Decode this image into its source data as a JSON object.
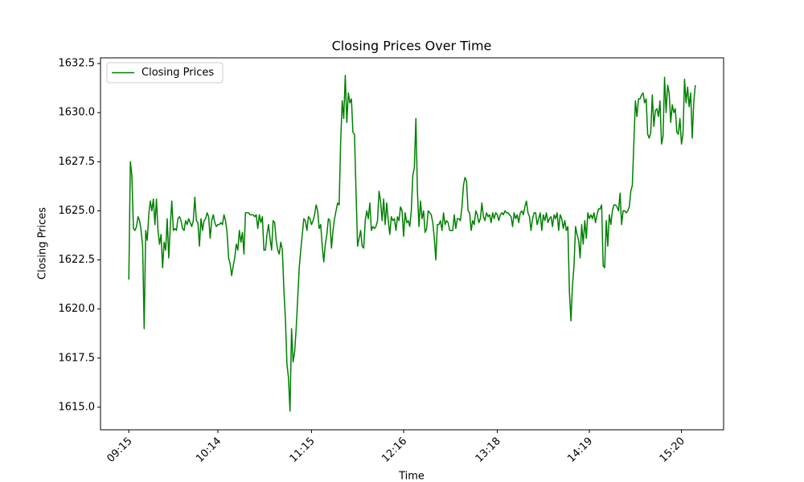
{
  "chart_data": {
    "type": "line",
    "title": "Closing Prices Over Time",
    "xlabel": "Time",
    "ylabel": "Closing Prices",
    "xlim": [
      -18.45,
      387.45
    ],
    "xticks": [
      {
        "value": 0,
        "label": "09:15"
      },
      {
        "value": 58,
        "label": "10:14"
      },
      {
        "value": 119,
        "label": "11:15"
      },
      {
        "value": 179,
        "label": "12:16"
      },
      {
        "value": 240,
        "label": "13:18"
      },
      {
        "value": 300,
        "label": "14:19"
      },
      {
        "value": 360,
        "label": "15:20"
      }
    ],
    "ylim": [
      1613.85,
      1632.79
    ],
    "yticks": [
      {
        "value": 1615,
        "label": "1615.0"
      },
      {
        "value": 1617.5,
        "label": "1617.5"
      },
      {
        "value": 1620,
        "label": "1620.0"
      },
      {
        "value": 1622.5,
        "label": "1622.5"
      },
      {
        "value": 1625,
        "label": "1625.0"
      },
      {
        "value": 1627.5,
        "label": "1627.5"
      },
      {
        "value": 1630,
        "label": "1630.0"
      },
      {
        "value": 1632.5,
        "label": "1632.5"
      }
    ],
    "grid": false,
    "legend": "upper left",
    "series": [
      {
        "name": "Closing Prices",
        "color": "#008000",
        "values": [
          1621.5,
          1627.5,
          1626.8,
          1624.1,
          1624.0,
          1624.2,
          1624.7,
          1624.5,
          1624.0,
          1623.2,
          1619.0,
          1624.0,
          1623.5,
          1624.8,
          1625.5,
          1625.0,
          1625.6,
          1624.3,
          1625.6,
          1624.0,
          1623.3,
          1623.8,
          1622.1,
          1623.4,
          1623.0,
          1624.6,
          1622.6,
          1624.2,
          1625.5,
          1624.0,
          1624.1,
          1624.0,
          1624.6,
          1624.7,
          1624.5,
          1624.1,
          1624.0,
          1624.5,
          1624.3,
          1624.6,
          1624.4,
          1624.2,
          1624.5,
          1625.7,
          1624.5,
          1624.4,
          1623.2,
          1624.6,
          1624.0,
          1624.5,
          1624.6,
          1624.9,
          1624.7,
          1623.6,
          1624.5,
          1624.8,
          1624.4,
          1624.2,
          1624.3,
          1624.3,
          1624.4,
          1624.3,
          1624.8,
          1624.5,
          1623.9,
          1622.6,
          1622.3,
          1621.7,
          1622.2,
          1622.6,
          1623.3,
          1623.0,
          1624.0,
          1623.4,
          1623.9,
          1622.8,
          1624.9,
          1624.9,
          1624.9,
          1624.8,
          1624.8,
          1624.8,
          1624.7,
          1624.8,
          1624.1,
          1624.8,
          1624.4,
          1624.7,
          1623.0,
          1623.0,
          1623.8,
          1624.3,
          1623.6,
          1623.0,
          1624.5,
          1624.4,
          1623.5,
          1623.0,
          1622.8,
          1623.4,
          1623.0,
          1621.0,
          1619.5,
          1617.2,
          1616.5,
          1614.8,
          1619.0,
          1617.3,
          1617.8,
          1619.0,
          1620.5,
          1622.1,
          1623.0,
          1623.8,
          1624.6,
          1624.5,
          1624.0,
          1624.7,
          1624.6,
          1624.3,
          1624.5,
          1624.8,
          1625.3,
          1625.0,
          1624.1,
          1624.3,
          1623.2,
          1622.4,
          1623.3,
          1623.8,
          1624.6,
          1624.5,
          1623.1,
          1624.0,
          1624.6,
          1625.0,
          1625.4,
          1625.3,
          1628.5,
          1630.6,
          1629.7,
          1631.9,
          1629.5,
          1631.0,
          1630.5,
          1630.7,
          1629.0,
          1628.9,
          1626.0,
          1623.2,
          1623.6,
          1624.0,
          1623.2,
          1623.1,
          1624.5,
          1625.0,
          1624.6,
          1625.4,
          1624.0,
          1624.2,
          1624.1,
          1624.2,
          1624.5,
          1626.0,
          1625.5,
          1624.5,
          1625.6,
          1624.3,
          1625.4,
          1624.5,
          1623.8,
          1624.7,
          1624.5,
          1624.6,
          1624.0,
          1624.7,
          1624.5,
          1625.2,
          1625.0,
          1623.7,
          1624.9,
          1624.4,
          1624.5,
          1624.2,
          1625.0,
          1626.8,
          1627.2,
          1629.7,
          1626.0,
          1624.2,
          1625.5,
          1624.6,
          1625.0,
          1623.9,
          1624.1,
          1625.0,
          1624.9,
          1624.8,
          1624.4,
          1623.6,
          1622.5,
          1624.3,
          1624.3,
          1624.5,
          1624.0,
          1624.9,
          1624.3,
          1624.5,
          1624.4,
          1624.0,
          1624.0,
          1624.0,
          1624.8,
          1624.1,
          1624.6,
          1624.6,
          1624.5,
          1625.2,
          1626.3,
          1626.7,
          1626.5,
          1625.0,
          1624.9,
          1624.0,
          1624.5,
          1624.3,
          1625.0,
          1624.8,
          1624.4,
          1624.6,
          1625.4,
          1624.7,
          1624.5,
          1624.9,
          1624.7,
          1624.8,
          1624.4,
          1624.9,
          1624.6,
          1624.9,
          1624.8,
          1624.5,
          1624.8,
          1624.9,
          1624.8,
          1625.0,
          1624.9,
          1624.9,
          1624.8,
          1624.7,
          1624.2,
          1624.9,
          1624.6,
          1624.8,
          1624.4,
          1624.9,
          1625.0,
          1624.8,
          1625.2,
          1625.5,
          1624.9,
          1624.7,
          1624.0,
          1624.6,
          1624.9,
          1624.9,
          1624.3,
          1624.6,
          1624.9,
          1624.0,
          1624.8,
          1624.5,
          1624.9,
          1624.4,
          1624.6,
          1624.7,
          1624.2,
          1624.8,
          1624.6,
          1624.9,
          1624.0,
          1624.8,
          1624.6,
          1624.1,
          1624.5,
          1624.0,
          1624.2,
          1620.9,
          1619.4,
          1621.2,
          1622.2,
          1624.2,
          1623.8,
          1623.5,
          1622.6,
          1624.3,
          1623.3,
          1624.5,
          1623.6,
          1624.9,
          1624.6,
          1624.8,
          1624.6,
          1624.9,
          1624.4,
          1624.8,
          1625.1,
          1625.1,
          1625.3,
          1622.2,
          1622.1,
          1624.5,
          1623.2,
          1624.8,
          1624.3,
          1625.0,
          1625.3,
          1625.3,
          1625.2,
          1625.0,
          1625.9,
          1624.3,
          1625.0,
          1625.0,
          1624.9,
          1625.0,
          1625.2,
          1626.0,
          1626.3,
          1628.5,
          1630.6,
          1629.8,
          1630.7,
          1630.7,
          1630.9,
          1631.0,
          1630.5,
          1630.7,
          1628.9,
          1628.7,
          1629.0,
          1630.9,
          1629.3,
          1630.1,
          1630.2,
          1629.8,
          1630.6,
          1628.4,
          1628.8,
          1631.8,
          1630.0,
          1631.4,
          1631.0,
          1629.5,
          1630.4,
          1630.0,
          1630.2,
          1629.0,
          1628.9,
          1629.7,
          1628.4,
          1628.9,
          1631.7,
          1630.5,
          1631.3,
          1630.3,
          1631.0,
          1628.7,
          1630.5,
          1631.4
        ]
      }
    ]
  }
}
